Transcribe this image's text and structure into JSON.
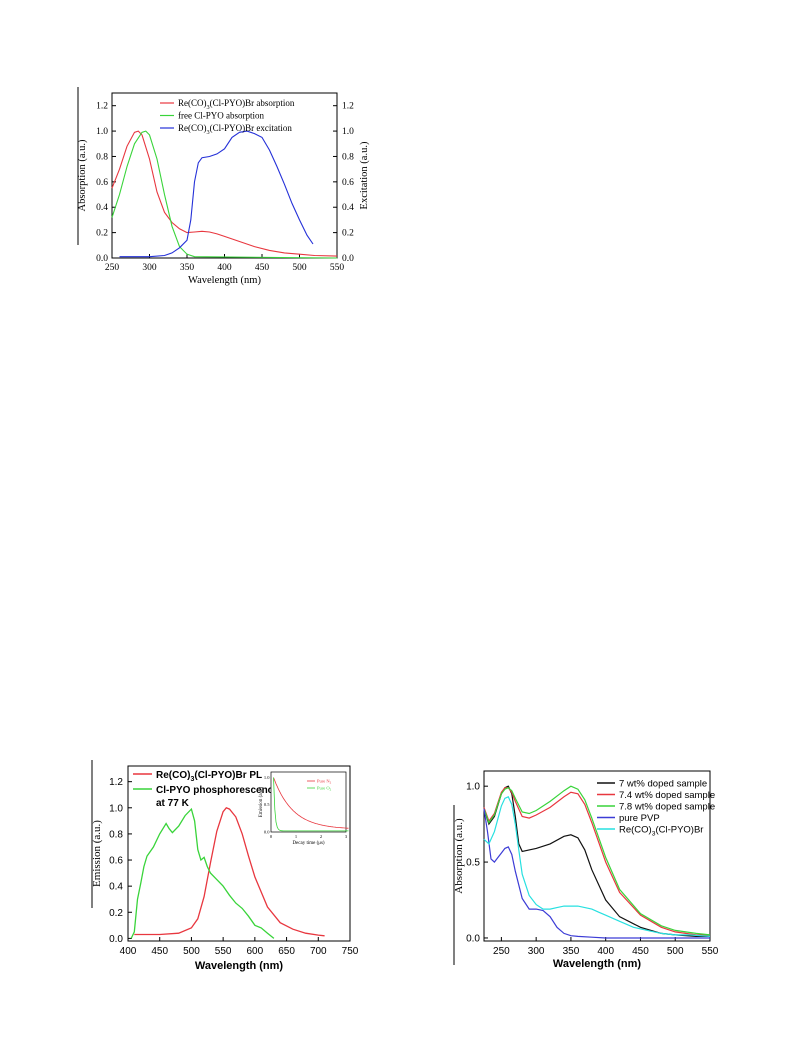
{
  "colors": {
    "red": "#e8373f",
    "green": "#39d43a",
    "blue": "#2430d8",
    "black": "#111111",
    "cyan": "#27e0e0",
    "mediumblue": "#3c3cd6"
  },
  "chart_data": [
    {
      "type": "line",
      "xlabel": "Wavelength (nm)",
      "ylabel": "Absorption (a.u.)",
      "ylabel_right": "Excitation (a.u.)",
      "xlim": [
        250,
        550
      ],
      "ylim": [
        0,
        1.3
      ],
      "xticks": [
        "250",
        "300",
        "350",
        "400",
        "450",
        "500",
        "550"
      ],
      "yticks": [
        "0.0",
        "0.2",
        "0.4",
        "0.6",
        "0.8",
        "1.0",
        "1.2"
      ],
      "legend_position": "top-right",
      "series": [
        {
          "name": "Re(CO)3(Cl-PYO)Br absorption",
          "name_main": "Re(CO)",
          "name_sub": "3",
          "name_rest": "(Cl-PYO)Br absorption",
          "color": "red",
          "x": [
            250,
            260,
            270,
            280,
            285,
            290,
            300,
            310,
            320,
            330,
            340,
            350,
            360,
            370,
            380,
            390,
            400,
            420,
            440,
            460,
            480,
            500,
            520,
            550
          ],
          "y": [
            0.55,
            0.7,
            0.88,
            0.99,
            1.0,
            0.97,
            0.78,
            0.52,
            0.36,
            0.28,
            0.23,
            0.2,
            0.205,
            0.21,
            0.205,
            0.19,
            0.17,
            0.13,
            0.09,
            0.06,
            0.04,
            0.03,
            0.02,
            0.015
          ]
        },
        {
          "name": "free Cl-PYO absorption",
          "color": "green",
          "x": [
            250,
            260,
            270,
            280,
            290,
            295,
            300,
            310,
            320,
            330,
            340,
            350,
            360,
            550
          ],
          "y": [
            0.32,
            0.5,
            0.72,
            0.9,
            0.99,
            1.0,
            0.97,
            0.78,
            0.5,
            0.25,
            0.09,
            0.03,
            0.01,
            0.0
          ]
        },
        {
          "name": "Re(CO)3(Cl-PYO)Br excitation",
          "name_main": "Re(CO)",
          "name_sub": "3",
          "name_rest": "(Cl-PYO)Br excitation",
          "color": "blue",
          "x": [
            260,
            300,
            320,
            330,
            340,
            350,
            355,
            360,
            365,
            370,
            380,
            390,
            400,
            410,
            420,
            430,
            440,
            450,
            460,
            470,
            480,
            490,
            500,
            510,
            518
          ],
          "y": [
            0.01,
            0.01,
            0.02,
            0.04,
            0.08,
            0.14,
            0.3,
            0.6,
            0.75,
            0.79,
            0.8,
            0.82,
            0.86,
            0.95,
            0.99,
            1.0,
            0.98,
            0.95,
            0.85,
            0.72,
            0.58,
            0.43,
            0.3,
            0.18,
            0.11
          ]
        }
      ]
    },
    {
      "type": "line",
      "xlabel": "Wavelength (nm)",
      "ylabel": "Emission (a.u.)",
      "xlim": [
        400,
        750
      ],
      "ylim": [
        -0.02,
        1.32
      ],
      "xticks": [
        "400",
        "450",
        "500",
        "550",
        "600",
        "650",
        "700",
        "750"
      ],
      "yticks": [
        "0.0",
        "0.2",
        "0.4",
        "0.6",
        "0.8",
        "1.0",
        "1.2"
      ],
      "legend_position": "top-left",
      "series": [
        {
          "name": "Re(CO)3(Cl-PYO)Br PL",
          "name_main": "Re(CO)",
          "name_sub": "3",
          "name_rest": "(Cl-PYO)Br PL",
          "color": "red",
          "x": [
            410,
            450,
            480,
            500,
            510,
            520,
            530,
            540,
            550,
            555,
            560,
            570,
            580,
            590,
            600,
            620,
            640,
            660,
            680,
            700,
            710
          ],
          "y": [
            0.03,
            0.03,
            0.04,
            0.08,
            0.15,
            0.32,
            0.58,
            0.82,
            0.97,
            1.0,
            0.99,
            0.93,
            0.8,
            0.63,
            0.47,
            0.24,
            0.12,
            0.07,
            0.04,
            0.025,
            0.02
          ]
        },
        {
          "name_line1": "Cl-PYO phosphorescence",
          "name_line2": "at 77 K",
          "color": "green",
          "x": [
            405,
            410,
            415,
            420,
            425,
            430,
            440,
            450,
            460,
            465,
            470,
            480,
            490,
            500,
            505,
            510,
            515,
            520,
            525,
            530,
            540,
            550,
            560,
            570,
            580,
            590,
            600,
            610,
            620,
            630
          ],
          "y": [
            0.0,
            0.05,
            0.3,
            0.42,
            0.55,
            0.63,
            0.7,
            0.8,
            0.88,
            0.84,
            0.81,
            0.86,
            0.94,
            0.99,
            0.9,
            0.68,
            0.6,
            0.62,
            0.55,
            0.5,
            0.45,
            0.4,
            0.33,
            0.27,
            0.23,
            0.17,
            0.1,
            0.08,
            0.04,
            0.0
          ]
        }
      ],
      "inset": {
        "xlabel": "Decay time (μs)",
        "ylabel": "Emission (a.u.)",
        "xticks": [
          "0",
          "1",
          "2",
          "3"
        ],
        "yticks": [
          "0.0",
          "0.5",
          "1.0"
        ],
        "legend": [
          {
            "name": "Pure N",
            "sub": "2",
            "color": "red"
          },
          {
            "name": "Pure O",
            "sub": "2",
            "color": "green"
          }
        ]
      }
    },
    {
      "type": "line",
      "xlabel": "Wavelength (nm)",
      "ylabel": "Absorption (a.u.)",
      "xlim": [
        225,
        550
      ],
      "ylim": [
        -0.02,
        1.1
      ],
      "xticks": [
        "250",
        "300",
        "350",
        "400",
        "450",
        "500",
        "550"
      ],
      "yticks": [
        "0.0",
        "0.5",
        "1.0"
      ],
      "legend_position": "top-right",
      "series": [
        {
          "name": "7 wt% doped sample",
          "color": "black",
          "x": [
            225,
            232,
            240,
            250,
            255,
            260,
            265,
            270,
            275,
            280,
            290,
            300,
            320,
            340,
            350,
            360,
            370,
            380,
            400,
            420,
            450,
            480,
            500,
            530,
            550
          ],
          "y": [
            0.85,
            0.75,
            0.8,
            0.95,
            0.99,
            1.0,
            0.95,
            0.8,
            0.62,
            0.57,
            0.58,
            0.59,
            0.62,
            0.67,
            0.68,
            0.66,
            0.58,
            0.45,
            0.25,
            0.14,
            0.07,
            0.03,
            0.02,
            0.01,
            0.01
          ]
        },
        {
          "name": "7.4 wt% doped sample",
          "color": "red",
          "x": [
            225,
            232,
            240,
            250,
            255,
            260,
            265,
            270,
            280,
            290,
            300,
            320,
            340,
            350,
            360,
            370,
            380,
            400,
            420,
            450,
            480,
            500,
            530,
            550
          ],
          "y": [
            0.86,
            0.77,
            0.82,
            0.96,
            0.99,
            0.99,
            0.96,
            0.9,
            0.8,
            0.79,
            0.81,
            0.86,
            0.93,
            0.96,
            0.95,
            0.88,
            0.76,
            0.5,
            0.3,
            0.15,
            0.07,
            0.04,
            0.02,
            0.02
          ]
        },
        {
          "name": "7.8 wt% doped sample",
          "color": "green",
          "x": [
            225,
            232,
            240,
            250,
            255,
            260,
            265,
            270,
            280,
            290,
            300,
            320,
            340,
            350,
            360,
            370,
            380,
            400,
            420,
            450,
            480,
            500,
            530,
            550
          ],
          "y": [
            0.85,
            0.76,
            0.81,
            0.95,
            0.98,
            0.99,
            0.97,
            0.92,
            0.83,
            0.82,
            0.84,
            0.9,
            0.97,
            1.0,
            0.98,
            0.91,
            0.79,
            0.53,
            0.32,
            0.16,
            0.08,
            0.05,
            0.03,
            0.02
          ]
        },
        {
          "name": "pure PVP",
          "color": "mediumblue",
          "x": [
            225,
            230,
            235,
            240,
            245,
            250,
            255,
            260,
            265,
            270,
            280,
            290,
            300,
            310,
            320,
            330,
            340,
            350,
            360,
            380,
            400,
            450,
            550
          ],
          "y": [
            0.85,
            0.7,
            0.52,
            0.5,
            0.53,
            0.56,
            0.59,
            0.6,
            0.55,
            0.44,
            0.26,
            0.19,
            0.19,
            0.18,
            0.14,
            0.07,
            0.03,
            0.015,
            0.01,
            0.005,
            0.0,
            0.0,
            0.0
          ]
        },
        {
          "name": "Re(CO)3(Cl-PYO)Br",
          "name_main": "Re(CO)",
          "name_sub": "3",
          "name_rest": "(Cl-PYO)Br",
          "color": "cyan",
          "x": [
            225,
            232,
            240,
            250,
            255,
            260,
            265,
            270,
            275,
            280,
            290,
            300,
            310,
            320,
            330,
            340,
            350,
            360,
            370,
            380,
            390,
            400,
            420,
            440,
            460,
            480,
            500,
            520,
            550
          ],
          "y": [
            0.65,
            0.62,
            0.7,
            0.87,
            0.92,
            0.93,
            0.88,
            0.75,
            0.58,
            0.42,
            0.28,
            0.22,
            0.19,
            0.19,
            0.2,
            0.21,
            0.21,
            0.21,
            0.2,
            0.19,
            0.17,
            0.15,
            0.11,
            0.07,
            0.05,
            0.03,
            0.02,
            0.02,
            0.01
          ]
        }
      ]
    }
  ]
}
